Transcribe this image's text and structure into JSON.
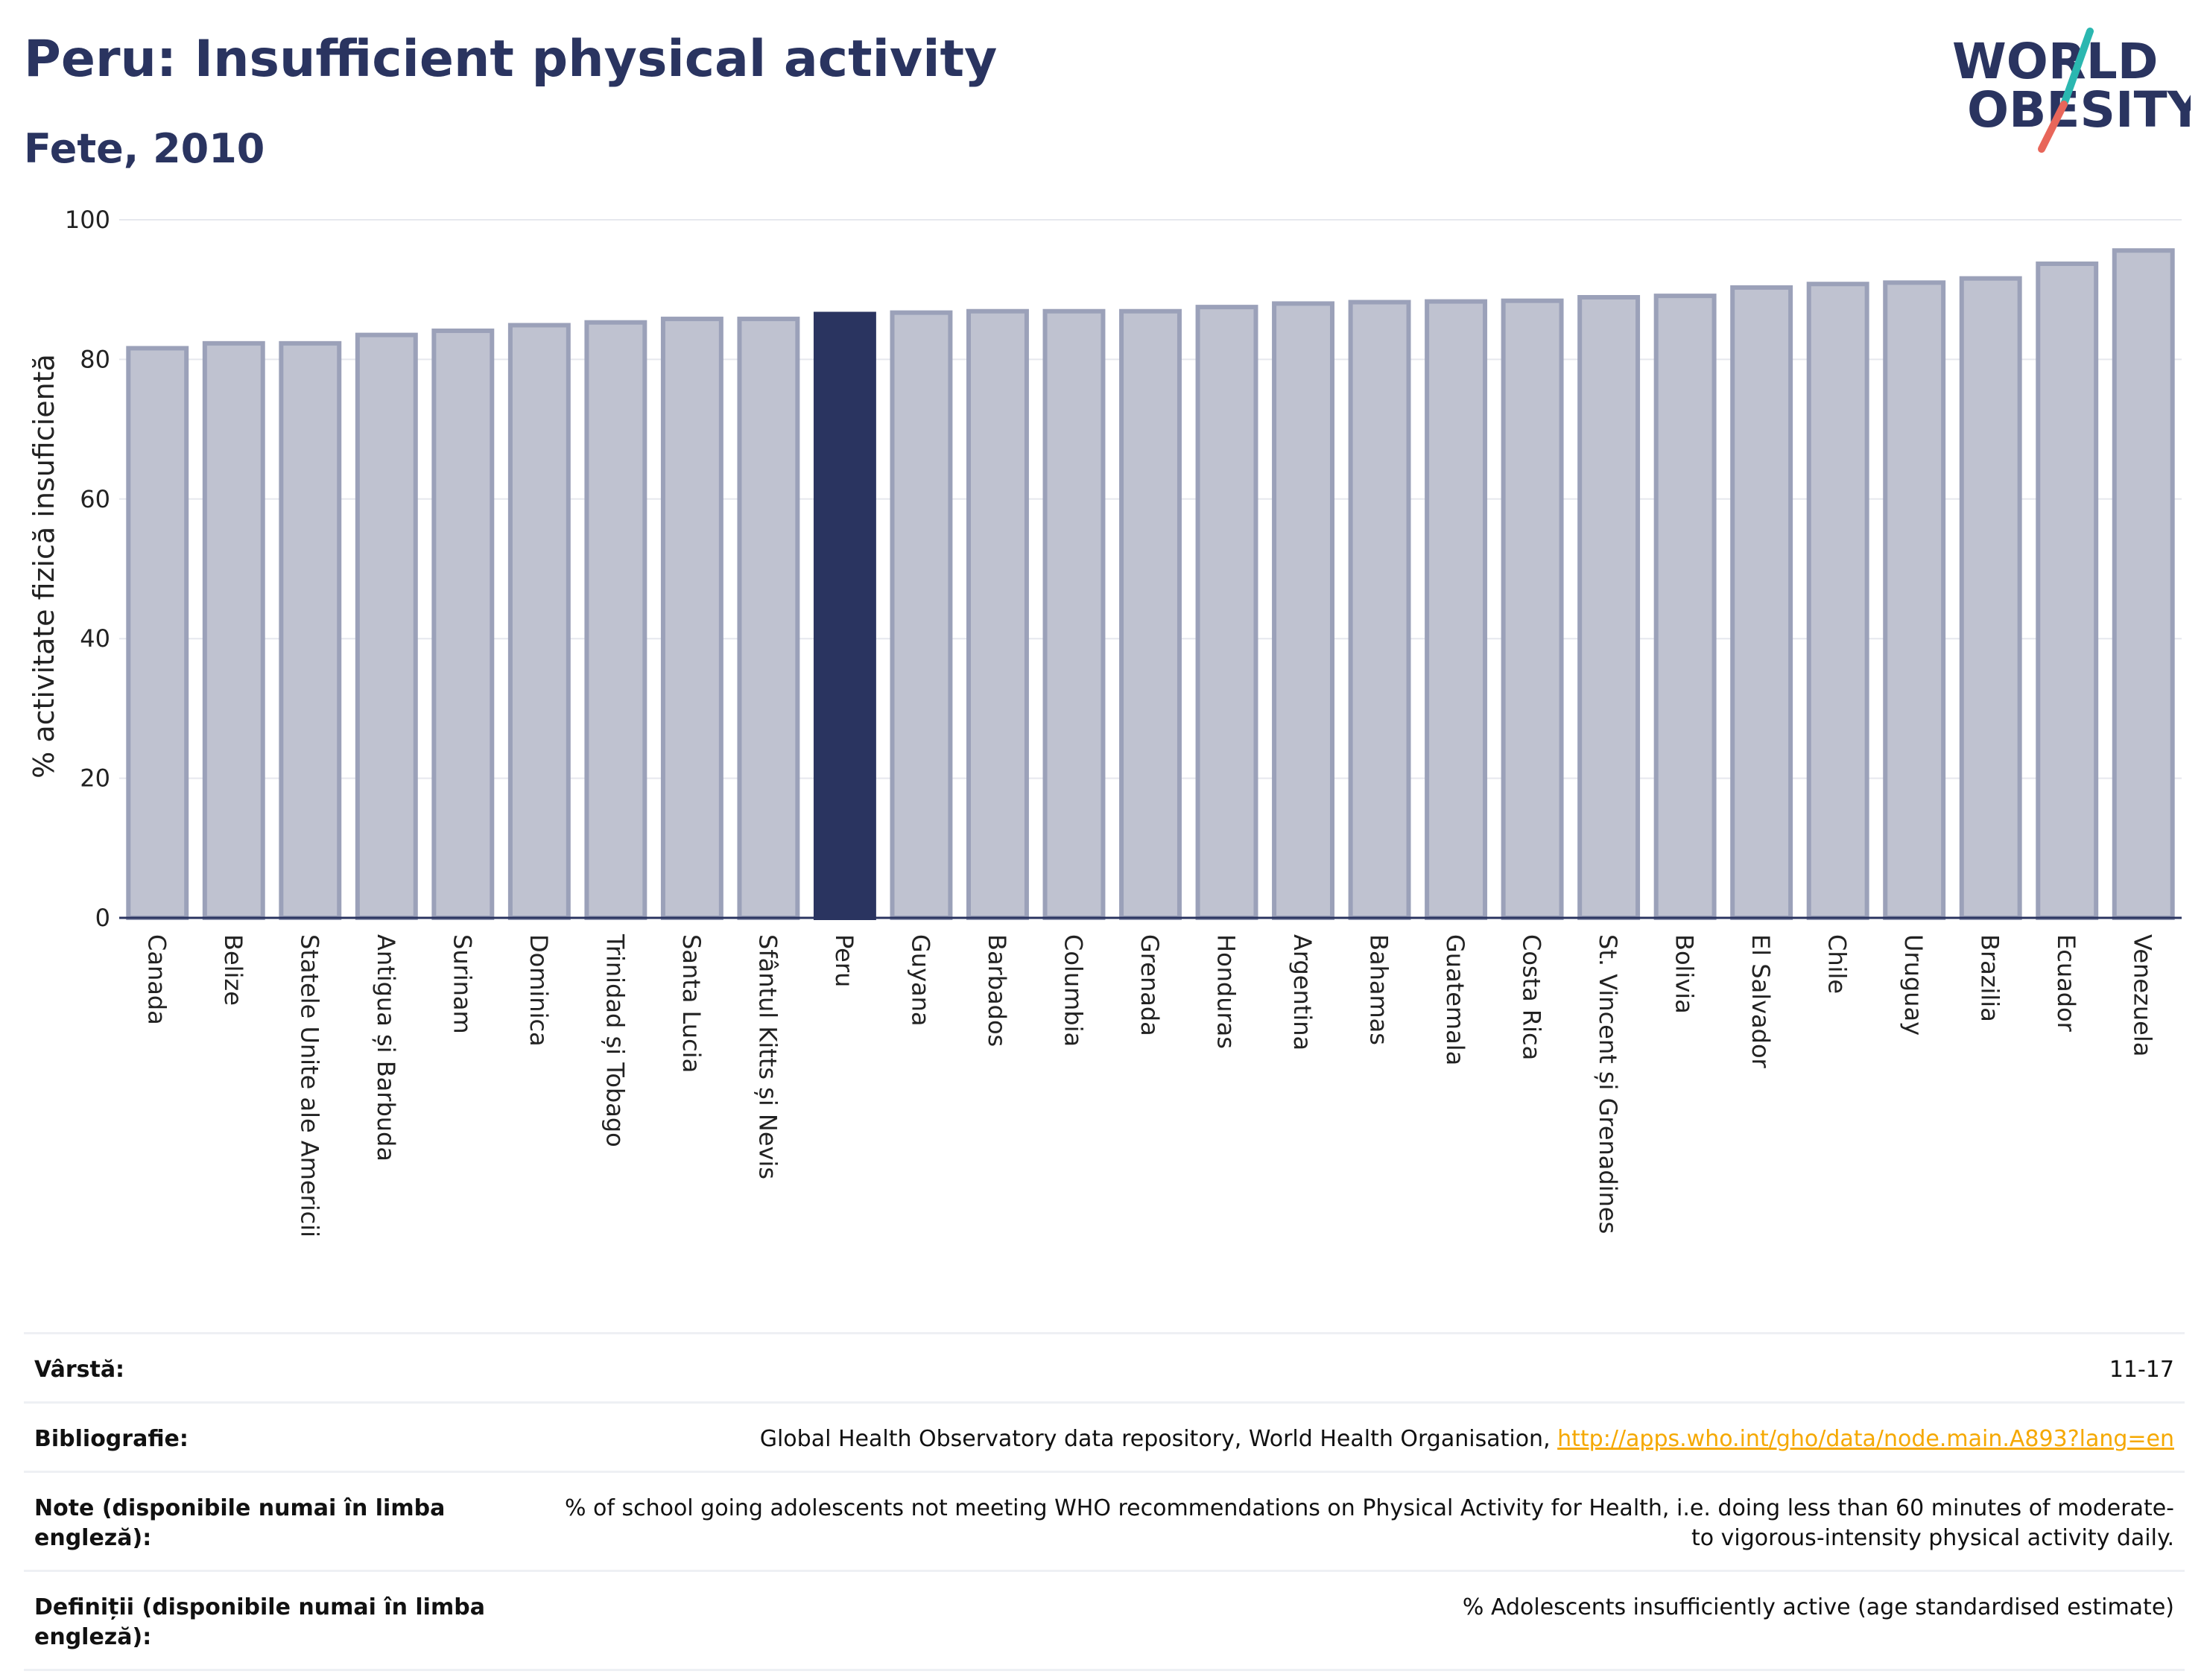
{
  "header": {
    "title": "Peru: Insufficient physical activity",
    "subtitle": "Fete, 2010"
  },
  "logo": {
    "line1": "WORLD",
    "line2": "OBESITY",
    "colors": {
      "text": "#2a3460",
      "slash_top": "#2bb7b0",
      "slash_bottom": "#e8665a"
    }
  },
  "chart_data": {
    "type": "bar",
    "categories": [
      "Canada",
      "Belize",
      "Statele Unite ale Americii",
      "Antigua și Barbuda",
      "Surinam",
      "Dominica",
      "Trinidad și Tobago",
      "Santa Lucia",
      "Sfântul Kitts și Nevis",
      "Peru",
      "Guyana",
      "Barbados",
      "Columbia",
      "Grenada",
      "Honduras",
      "Argentina",
      "Bahamas",
      "Guatemala",
      "Costa Rica",
      "St. Vincent și Grenadines",
      "Bolivia",
      "El Salvador",
      "Chile",
      "Uruguay",
      "Brazilia",
      "Ecuador",
      "Venezuela"
    ],
    "values": [
      81.6,
      82.3,
      82.3,
      83.5,
      84.1,
      84.9,
      85.3,
      85.8,
      85.8,
      86.5,
      86.7,
      86.9,
      86.9,
      86.9,
      87.5,
      88.0,
      88.2,
      88.3,
      88.4,
      88.9,
      89.1,
      90.3,
      90.8,
      91.0,
      91.6,
      93.7,
      95.6
    ],
    "highlight": "Peru",
    "ylabel": "% activitate fizică insuficientă",
    "ylim": [
      0,
      100
    ],
    "yticks": [
      "0",
      "20",
      "40",
      "60",
      "80",
      "100"
    ],
    "grid": true,
    "colors": {
      "bar": "#bfc2d0",
      "bar_edge": "#9ba1b9",
      "highlight": "#2a3460",
      "grid": "#e6e8ee",
      "axis": "#2a3460"
    }
  },
  "meta": {
    "rows": [
      {
        "label": "Vârstă:",
        "value": "11-17"
      },
      {
        "label": "Bibliografie:",
        "value": "Global Health Observatory data repository, World Health Organisation, ",
        "link": "http://apps.who.int/gho/data/node.main.A893?lang=en"
      },
      {
        "label": "Note (disponibile numai în limba engleză):",
        "value": "% of school going adolescents not meeting WHO recommendations on Physical Activity for Health, i.e. doing less than 60 minutes of moderate- to vigorous-intensity physical activity daily."
      },
      {
        "label": "Definiții (disponibile numai în limba engleză):",
        "value": "% Adolescents insufficiently active (age standardised estimate)"
      }
    ]
  }
}
